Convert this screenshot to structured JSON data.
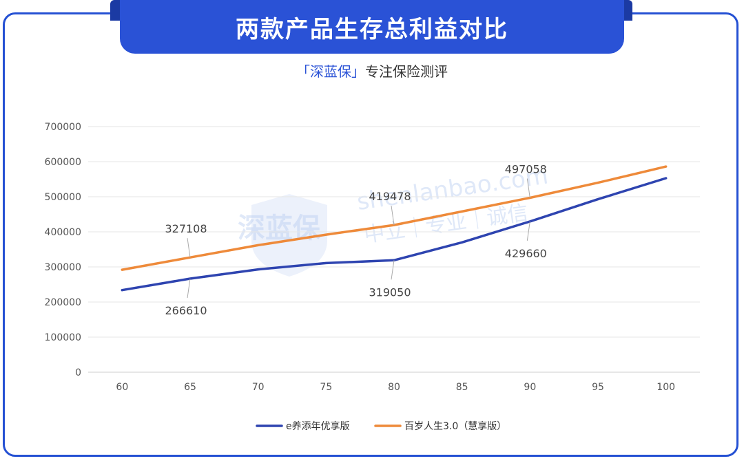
{
  "header": {
    "title": "两款产品生存总利益对比",
    "subtitle_brand": "「深蓝保」",
    "subtitle_rest": "专注保险测评"
  },
  "watermark": {
    "logo_text": "深蓝保",
    "domain": "shenlanbao.com",
    "slogan": "中立｜专业｜诚信"
  },
  "colors": {
    "accent": "#2a52d6",
    "series1": "#2e44b0",
    "series2": "#ee8a3a",
    "grid": "#e6e6e6"
  },
  "chart_data": {
    "type": "line",
    "title": "两款产品生存总利益对比",
    "xlabel": "",
    "ylabel": "",
    "x": [
      60,
      65,
      70,
      75,
      80,
      85,
      90,
      95,
      100
    ],
    "ylim": [
      0,
      700000
    ],
    "yticks": [
      0,
      100000,
      200000,
      300000,
      400000,
      500000,
      600000,
      700000
    ],
    "grid": true,
    "legend_position": "bottom",
    "series": [
      {
        "name": "e养添年优享版",
        "color": "#2e44b0",
        "values": [
          234000,
          266610,
          293000,
          311000,
          319050,
          370000,
          429660,
          493000,
          553000
        ],
        "labels": [
          {
            "index": 1,
            "text": "266610",
            "side": "below"
          },
          {
            "index": 4,
            "text": "319050",
            "side": "below"
          },
          {
            "index": 6,
            "text": "429660",
            "side": "below"
          }
        ]
      },
      {
        "name": "百岁人生3.0（慧享版）",
        "color": "#ee8a3a",
        "values": [
          292000,
          327108,
          362000,
          392000,
          419478,
          458000,
          497058,
          540000,
          586000
        ],
        "labels": [
          {
            "index": 1,
            "text": "327108",
            "side": "above"
          },
          {
            "index": 4,
            "text": "419478",
            "side": "above"
          },
          {
            "index": 6,
            "text": "497058",
            "side": "above"
          }
        ]
      }
    ]
  }
}
